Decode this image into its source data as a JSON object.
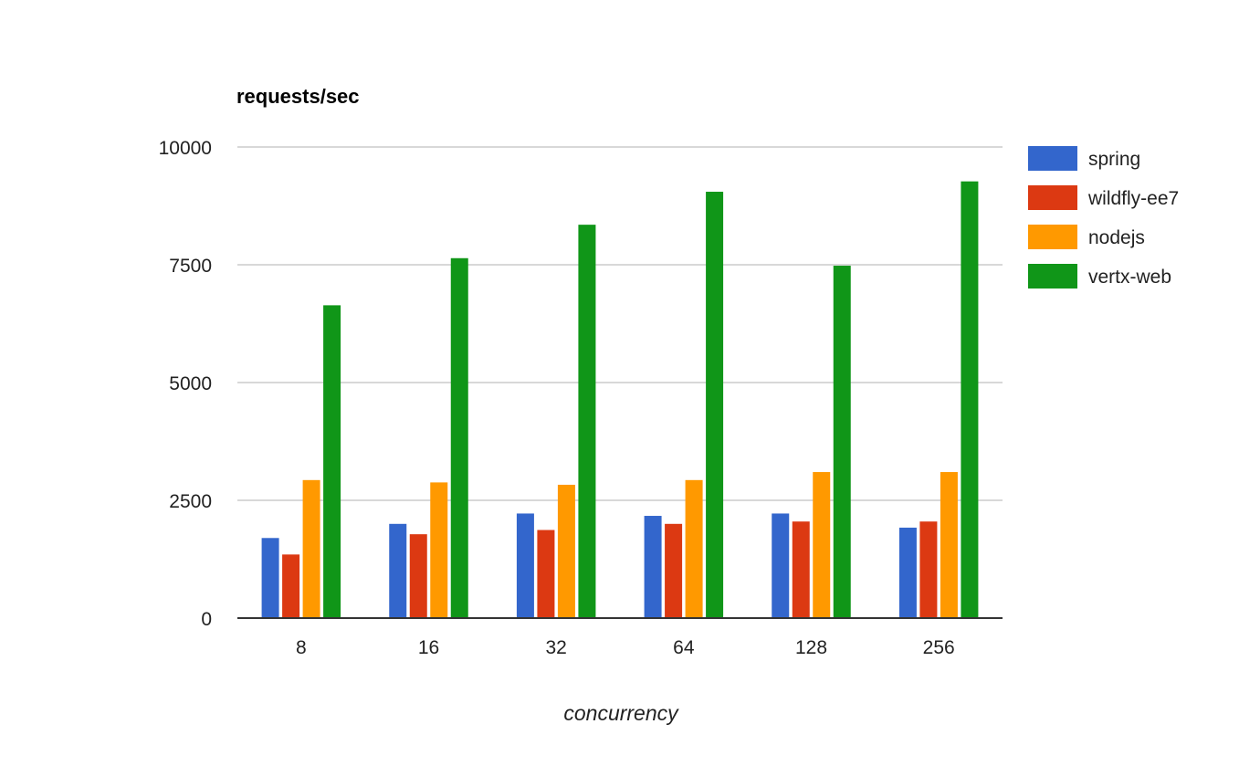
{
  "chart_data": {
    "type": "bar",
    "title": "requests/sec",
    "xlabel": "concurrency",
    "ylabel": "",
    "ylim": [
      0,
      10000
    ],
    "yticks": [
      "0",
      "2500",
      "5000",
      "7500",
      "10000"
    ],
    "categories": [
      "8",
      "16",
      "32",
      "64",
      "128",
      "256"
    ],
    "grid": true,
    "legend_position": "right",
    "series": [
      {
        "name": "spring",
        "color": "#3366cc",
        "values": [
          1700,
          2000,
          2220,
          2170,
          2220,
          1920
        ]
      },
      {
        "name": "wildfly-ee7",
        "color": "#dc3912",
        "values": [
          1350,
          1780,
          1870,
          2000,
          2050,
          2050
        ]
      },
      {
        "name": "nodejs",
        "color": "#ff9900",
        "values": [
          2930,
          2880,
          2830,
          2930,
          3100,
          3100
        ]
      },
      {
        "name": "vertx-web",
        "color": "#109618",
        "values": [
          6640,
          7640,
          8350,
          9050,
          7480,
          9270
        ]
      }
    ]
  }
}
